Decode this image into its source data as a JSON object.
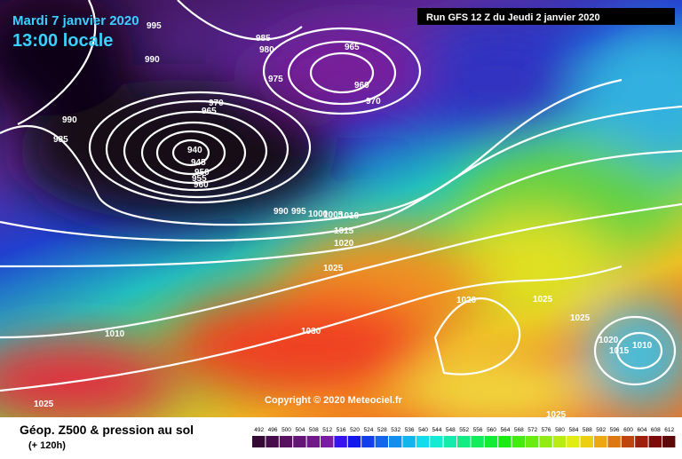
{
  "header": {
    "date": "Mardi 7 janvier 2020",
    "time": "13:00 locale",
    "run": "Run GFS 12 Z du Jeudi 2 janvier 2020"
  },
  "copyright": "Copyright © 2020 Meteociel.fr",
  "footer": {
    "title": "Géop. Z500 & pression au sol",
    "lead": "(+ 120h)"
  },
  "scale": {
    "ticks": [
      492,
      496,
      500,
      504,
      508,
      512,
      516,
      520,
      524,
      528,
      532,
      536,
      540,
      544,
      548,
      552,
      556,
      560,
      564,
      568,
      572,
      576,
      580,
      584,
      588,
      592,
      596,
      600,
      604,
      608,
      612
    ]
  },
  "isobar_labels": [
    "995",
    "990",
    "985",
    "980",
    "975",
    "965",
    "960",
    "970",
    "970",
    "965",
    "990",
    "985",
    "940",
    "945",
    "950",
    "955",
    "960",
    "990",
    "995",
    "1000",
    "1005",
    "1010",
    "1015",
    "1020",
    "1025",
    "1030",
    "1010",
    "1025",
    "1025",
    "1020",
    "1025",
    "1025",
    "1020",
    "1015",
    "1010"
  ]
}
